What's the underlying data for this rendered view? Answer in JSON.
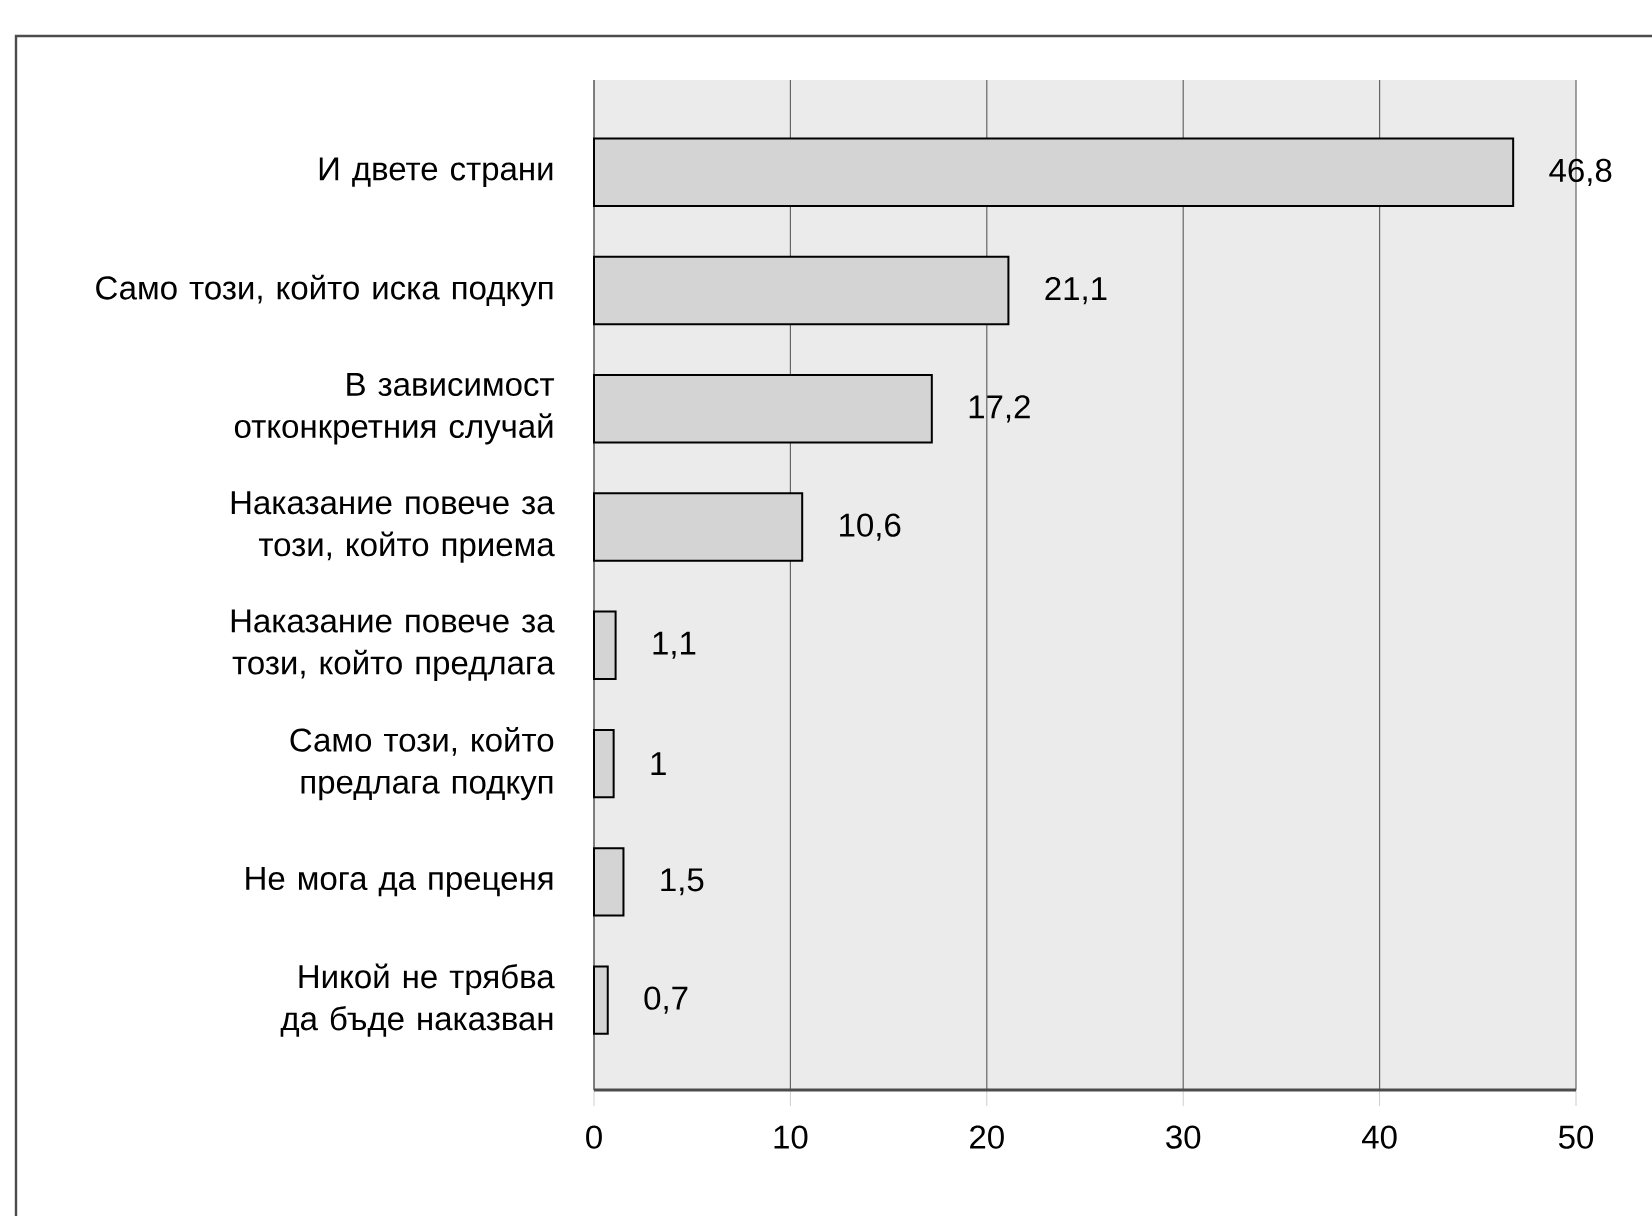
{
  "chart_data": {
    "type": "bar",
    "orientation": "horizontal",
    "categories": [
      "И двете страни",
      "Само този, който иска подкуп",
      "В зависимост отконкретния случай",
      "Наказание повече за този, който приема",
      "Наказание повече за този, който предлага",
      "Само този, който предлага подкуп",
      "Не мога да преценя",
      "Никой не трябва да бъде наказван"
    ],
    "values": [
      46.8,
      21.1,
      17.2,
      10.6,
      1.1,
      1,
      1.5,
      0.7
    ],
    "value_labels": [
      "46,8",
      "21,1",
      "17,2",
      "10,6",
      "1,1",
      "1",
      "1,5",
      "0,7"
    ],
    "color": "#d4d4d4",
    "xlim": [
      0,
      50
    ],
    "xticks": [
      0,
      10,
      20,
      30,
      40,
      50
    ],
    "grid": "x"
  }
}
